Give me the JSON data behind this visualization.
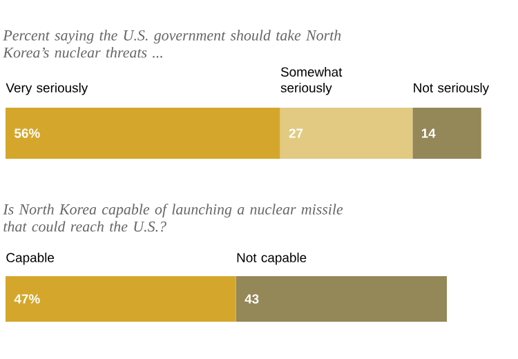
{
  "chart_data": [
    {
      "type": "bar",
      "orientation": "horizontal",
      "stacked": true,
      "title": "Percent saying the U.S. government should take North Korea’s nuclear threats ...",
      "categories": [
        null
      ],
      "series": [
        {
          "name": "Very seriously",
          "color": "#d4a72c",
          "values": [
            56
          ],
          "value_labels": [
            "56%"
          ]
        },
        {
          "name": "Somewhat seriously",
          "color": "#e2ca83",
          "values": [
            27
          ],
          "value_labels": [
            "27"
          ]
        },
        {
          "name": "Not seriously",
          "color": "#948758",
          "values": [
            14
          ],
          "value_labels": [
            "14"
          ]
        }
      ]
    },
    {
      "type": "bar",
      "orientation": "horizontal",
      "stacked": true,
      "title": "Is North Korea capable of launching a nuclear missile that could reach the U.S.?",
      "categories": [
        null
      ],
      "series": [
        {
          "name": "Capable",
          "color": "#d4a72c",
          "values": [
            47
          ],
          "value_labels": [
            "47%"
          ]
        },
        {
          "name": "Not capable",
          "color": "#948758",
          "values": [
            43
          ],
          "value_labels": [
            "43"
          ]
        }
      ]
    }
  ]
}
